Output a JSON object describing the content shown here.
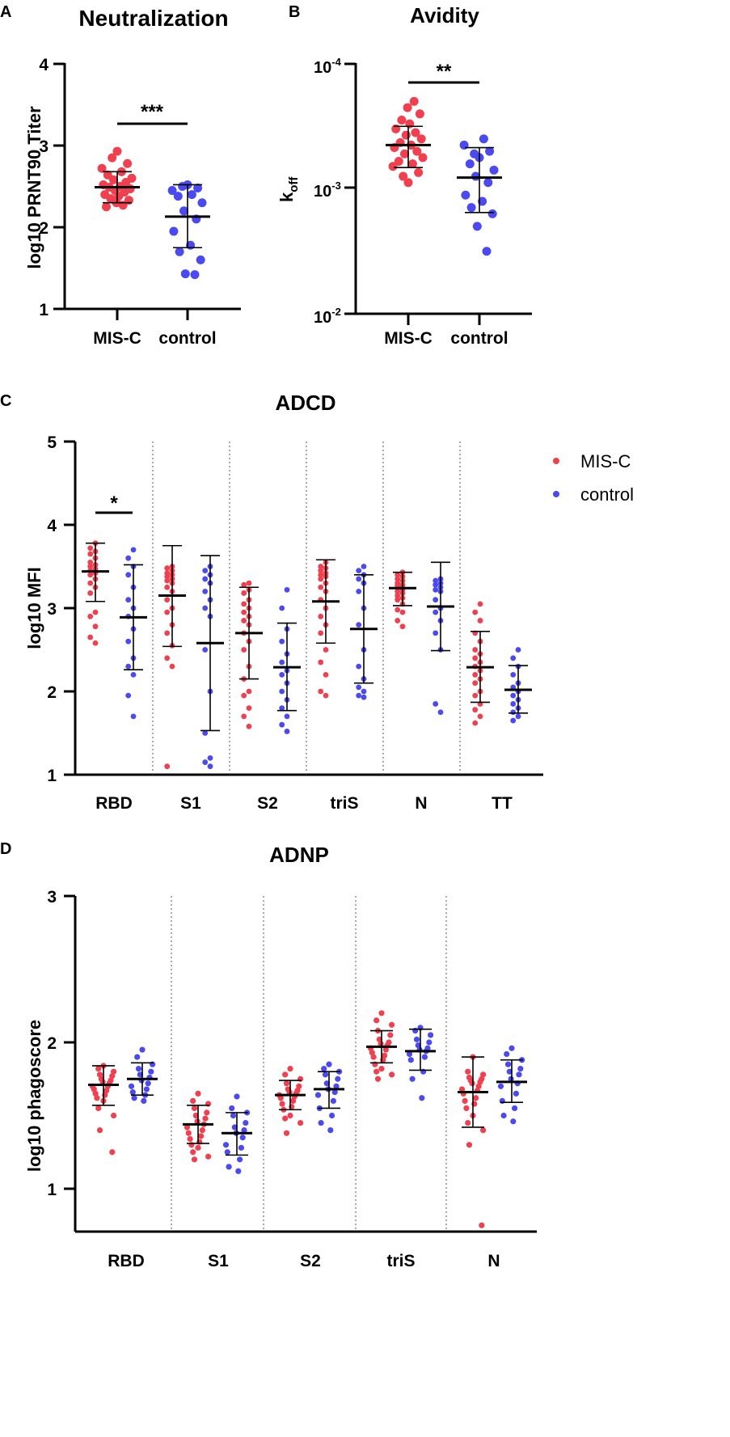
{
  "colors": {
    "mis_c": "#f0404f",
    "control": "#4a4af0",
    "axis": "#000000"
  },
  "chart_data": [
    {
      "panel": "A",
      "type": "scatter",
      "title": "Neutralization",
      "ylabel": "log10 PRNT90 Titer",
      "xlabel": "",
      "ylim": [
        1,
        4
      ],
      "yticks": [
        "1",
        "2",
        "3",
        "4"
      ],
      "categories": [
        "MIS-C",
        "control"
      ],
      "significance": "***",
      "series": [
        {
          "name": "MIS-C",
          "mean": 2.49,
          "sd_low": 2.3,
          "sd_high": 2.68,
          "values": [
            2.93,
            2.85,
            2.78,
            2.72,
            2.68,
            2.64,
            2.6,
            2.58,
            2.55,
            2.52,
            2.5,
            2.49,
            2.47,
            2.45,
            2.43,
            2.4,
            2.38,
            2.35,
            2.33,
            2.3,
            2.27,
            2.25
          ]
        },
        {
          "name": "control",
          "mean": 2.13,
          "sd_low": 1.75,
          "sd_high": 2.52,
          "values": [
            2.52,
            2.5,
            2.48,
            2.45,
            2.4,
            2.38,
            2.3,
            2.2,
            2.1,
            1.95,
            1.78,
            1.7,
            1.6,
            1.43,
            1.42
          ]
        }
      ]
    },
    {
      "panel": "B",
      "type": "scatter",
      "title": "Avidity",
      "ylabel": "koff",
      "ylabel_main": "k",
      "ylabel_sub": "off",
      "xlabel": "",
      "ylim": [
        -4,
        -2
      ],
      "yscale": "log (inverted)",
      "yticks": [
        {
          "base": "10",
          "exp": "-4"
        },
        {
          "base": "10",
          "exp": "-3"
        },
        {
          "base": "10",
          "exp": "-2"
        }
      ],
      "categories": [
        "MIS-C",
        "control"
      ],
      "significance": "**",
      "series": [
        {
          "name": "MIS-C",
          "mean": -3.35,
          "sd_low": -3.17,
          "sd_high": -3.5,
          "values": [
            -3.05,
            -3.1,
            -3.13,
            -3.18,
            -3.2,
            -3.22,
            -3.25,
            -3.28,
            -3.3,
            -3.33,
            -3.35,
            -3.37,
            -3.4,
            -3.43,
            -3.45,
            -3.48,
            -3.52,
            -3.55,
            -3.6,
            -3.65,
            -3.7
          ]
        },
        {
          "name": "control",
          "mean": -3.09,
          "sd_low": -2.81,
          "sd_high": -3.33,
          "values": [
            -3.25,
            -3.28,
            -3.3,
            -3.35,
            -3.4,
            -3.2,
            -3.15,
            -3.1,
            -3.05,
            -2.95,
            -2.9,
            -2.85,
            -2.8,
            -2.7,
            -2.5
          ]
        }
      ]
    },
    {
      "panel": "C",
      "type": "scatter",
      "title": "ADCD",
      "ylabel": "log10 MFI",
      "xlabel": "",
      "ylim": [
        1,
        5
      ],
      "yticks": [
        "1",
        "2",
        "3",
        "4",
        "5"
      ],
      "categories": [
        "RBD",
        "S1",
        "S2",
        "triS",
        "N",
        "TT"
      ],
      "significance": [
        {
          "category": "RBD",
          "label": "*"
        }
      ],
      "legend": {
        "position": "top-right",
        "entries": [
          "MIS-C",
          "control"
        ]
      },
      "series": [
        {
          "name": "MIS-C",
          "groups": [
            {
              "mean": 3.44,
              "sd_low": 3.08,
              "sd_high": 3.78,
              "values": [
                3.78,
                3.72,
                3.68,
                3.65,
                3.6,
                3.55,
                3.52,
                3.5,
                3.47,
                3.45,
                3.42,
                3.4,
                3.35,
                3.3,
                3.25,
                3.18,
                2.95,
                2.9,
                2.78,
                2.65,
                2.58
              ]
            },
            {
              "mean": 3.15,
              "sd_low": 2.54,
              "sd_high": 3.75,
              "values": [
                3.5,
                3.48,
                3.45,
                3.42,
                3.4,
                3.38,
                3.35,
                3.33,
                3.3,
                3.25,
                3.2,
                3.1,
                3.0,
                2.95,
                2.8,
                2.7,
                2.55,
                2.4,
                2.3,
                1.1
              ]
            },
            {
              "mean": 2.7,
              "sd_low": 2.15,
              "sd_high": 3.25,
              "values": [
                3.3,
                3.28,
                3.22,
                3.18,
                3.1,
                3.05,
                3.0,
                2.95,
                2.9,
                2.85,
                2.8,
                2.7,
                2.6,
                2.5,
                2.3,
                2.15,
                2.0,
                1.95,
                1.8,
                1.7,
                1.58
              ]
            },
            {
              "mean": 3.08,
              "sd_low": 2.58,
              "sd_high": 3.58,
              "values": [
                3.55,
                3.5,
                3.48,
                3.45,
                3.42,
                3.4,
                3.38,
                3.35,
                3.3,
                3.25,
                3.2,
                3.1,
                3.0,
                2.9,
                2.8,
                2.7,
                2.5,
                2.35,
                2.2,
                2.0,
                1.95
              ]
            },
            {
              "mean": 3.24,
              "sd_low": 3.03,
              "sd_high": 3.43,
              "values": [
                3.43,
                3.4,
                3.38,
                3.35,
                3.33,
                3.3,
                3.28,
                3.27,
                3.25,
                3.24,
                3.22,
                3.2,
                3.18,
                3.15,
                3.12,
                3.1,
                3.05,
                2.98,
                2.95,
                2.85,
                2.78
              ]
            },
            {
              "mean": 2.29,
              "sd_low": 1.87,
              "sd_high": 2.72,
              "values": [
                3.05,
                2.95,
                2.85,
                2.7,
                2.6,
                2.5,
                2.45,
                2.4,
                2.35,
                2.3,
                2.25,
                2.2,
                2.15,
                2.1,
                2.0,
                1.95,
                1.85,
                1.78,
                1.7,
                1.62
              ]
            }
          ]
        },
        {
          "name": "control",
          "groups": [
            {
              "mean": 2.89,
              "sd_low": 2.26,
              "sd_high": 3.52,
              "values": [
                3.7,
                3.6,
                3.5,
                3.4,
                3.25,
                3.1,
                3.0,
                2.9,
                2.75,
                2.6,
                2.4,
                2.3,
                2.2,
                1.95,
                1.7
              ]
            },
            {
              "mean": 2.58,
              "sd_low": 1.53,
              "sd_high": 3.63,
              "values": [
                3.5,
                3.45,
                3.4,
                3.35,
                3.3,
                3.2,
                3.1,
                3.0,
                2.9,
                2.5,
                2.0,
                1.5,
                1.2,
                1.15,
                1.1
              ]
            },
            {
              "mean": 2.29,
              "sd_low": 1.77,
              "sd_high": 2.82,
              "values": [
                3.22,
                3.0,
                2.75,
                2.6,
                2.45,
                2.35,
                2.25,
                2.2,
                2.1,
                2.0,
                1.9,
                1.8,
                1.7,
                1.6,
                1.52
              ]
            },
            {
              "mean": 2.75,
              "sd_low": 2.1,
              "sd_high": 3.4,
              "values": [
                3.5,
                3.45,
                3.4,
                3.35,
                3.3,
                3.2,
                3.0,
                2.8,
                2.5,
                2.3,
                2.15,
                2.05,
                2.0,
                1.95,
                1.93
              ]
            },
            {
              "mean": 3.02,
              "sd_low": 2.49,
              "sd_high": 3.55,
              "values": [
                3.35,
                3.33,
                3.3,
                3.28,
                3.25,
                3.22,
                3.2,
                3.1,
                3.0,
                2.95,
                2.85,
                2.7,
                2.5,
                1.85,
                1.75
              ]
            },
            {
              "mean": 2.02,
              "sd_low": 1.74,
              "sd_high": 2.31,
              "values": [
                2.5,
                2.4,
                2.3,
                2.2,
                2.1,
                2.05,
                2.0,
                1.95,
                1.9,
                1.85,
                1.8,
                1.75,
                1.7,
                1.65
              ]
            }
          ]
        }
      ]
    },
    {
      "panel": "D",
      "type": "scatter",
      "title": "ADNP",
      "ylabel": "log10 phagoscore",
      "xlabel": "",
      "ylim": [
        0.7,
        3
      ],
      "yticks": [
        "1",
        "2",
        "3"
      ],
      "categories": [
        "RBD",
        "S1",
        "S2",
        "triS",
        "N"
      ],
      "series": [
        {
          "name": "MIS-C",
          "groups": [
            {
              "mean": 1.71,
              "sd_low": 1.57,
              "sd_high": 1.84,
              "values": [
                1.84,
                1.82,
                1.8,
                1.78,
                1.77,
                1.75,
                1.74,
                1.73,
                1.72,
                1.7,
                1.7,
                1.68,
                1.67,
                1.65,
                1.64,
                1.62,
                1.6,
                1.55,
                1.5,
                1.4,
                1.25
              ]
            },
            {
              "mean": 1.44,
              "sd_low": 1.31,
              "sd_high": 1.57,
              "values": [
                1.65,
                1.6,
                1.58,
                1.55,
                1.52,
                1.5,
                1.48,
                1.46,
                1.44,
                1.42,
                1.4,
                1.38,
                1.36,
                1.34,
                1.32,
                1.3,
                1.28,
                1.25,
                1.22,
                1.2
              ]
            },
            {
              "mean": 1.64,
              "sd_low": 1.54,
              "sd_high": 1.74,
              "values": [
                1.82,
                1.78,
                1.75,
                1.72,
                1.7,
                1.68,
                1.67,
                1.66,
                1.65,
                1.64,
                1.63,
                1.62,
                1.6,
                1.58,
                1.56,
                1.54,
                1.5,
                1.48,
                1.45,
                1.38
              ]
            },
            {
              "mean": 1.97,
              "sd_low": 1.86,
              "sd_high": 2.08,
              "values": [
                2.2,
                2.15,
                2.12,
                2.08,
                2.05,
                2.02,
                2.0,
                1.99,
                1.98,
                1.96,
                1.95,
                1.93,
                1.91,
                1.9,
                1.88,
                1.85,
                1.82,
                1.8,
                1.78,
                1.75
              ]
            },
            {
              "mean": 1.66,
              "sd_low": 1.42,
              "sd_high": 1.9,
              "values": [
                1.9,
                1.8,
                1.78,
                1.76,
                1.75,
                1.74,
                1.73,
                1.72,
                1.7,
                1.68,
                1.67,
                1.65,
                1.62,
                1.6,
                1.58,
                1.55,
                1.5,
                1.45,
                1.4,
                1.3,
                0.75
              ]
            }
          ]
        },
        {
          "name": "control",
          "groups": [
            {
              "mean": 1.75,
              "sd_low": 1.64,
              "sd_high": 1.86,
              "values": [
                1.95,
                1.9,
                1.85,
                1.82,
                1.8,
                1.78,
                1.76,
                1.74,
                1.72,
                1.7,
                1.68,
                1.66,
                1.64,
                1.62,
                1.6
              ]
            },
            {
              "mean": 1.38,
              "sd_low": 1.23,
              "sd_high": 1.52,
              "values": [
                1.63,
                1.55,
                1.52,
                1.5,
                1.45,
                1.42,
                1.4,
                1.38,
                1.35,
                1.3,
                1.28,
                1.25,
                1.2,
                1.15,
                1.12
              ]
            },
            {
              "mean": 1.68,
              "sd_low": 1.55,
              "sd_high": 1.8,
              "values": [
                1.85,
                1.82,
                1.8,
                1.78,
                1.75,
                1.72,
                1.7,
                1.68,
                1.66,
                1.64,
                1.6,
                1.55,
                1.5,
                1.45,
                1.4
              ]
            },
            {
              "mean": 1.94,
              "sd_low": 1.81,
              "sd_high": 2.09,
              "values": [
                2.1,
                2.08,
                2.05,
                2.02,
                2.0,
                1.98,
                1.96,
                1.95,
                1.94,
                1.92,
                1.9,
                1.88,
                1.8,
                1.75,
                1.62
              ]
            },
            {
              "mean": 1.73,
              "sd_low": 1.59,
              "sd_high": 1.88,
              "values": [
                1.96,
                1.92,
                1.88,
                1.85,
                1.82,
                1.8,
                1.78,
                1.75,
                1.72,
                1.7,
                1.65,
                1.6,
                1.55,
                1.5,
                1.46
              ]
            }
          ]
        }
      ]
    }
  ]
}
